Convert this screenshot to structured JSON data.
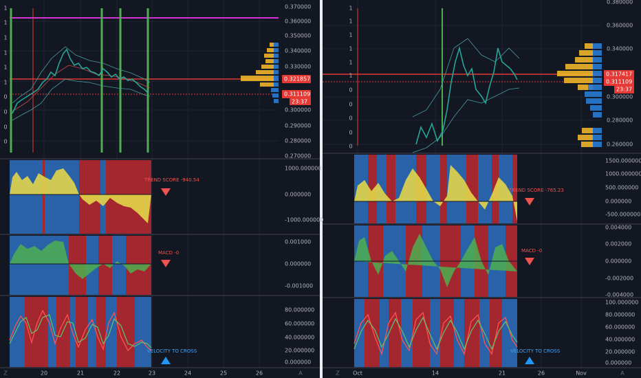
{
  "left_pane": {
    "side_labels": [
      "1",
      "1",
      "1",
      "1",
      "1",
      "1",
      "0",
      "0",
      "0",
      "0"
    ],
    "price_axis": [
      "0.370000",
      "0.360000",
      "0.350000",
      "0.340000",
      "0.330000",
      "0.300000",
      "0.290000",
      "0.280000",
      "0.270000"
    ],
    "price_tags": {
      "last": "0.321857",
      "current": "0.311109",
      "countdown": "23:37"
    },
    "trend_panel": {
      "label": "TREND SCORE -940.54",
      "axis": [
        "1000.000000",
        "0.000000",
        "-1000.000000"
      ]
    },
    "macd_panel": {
      "label": "MACD -0",
      "axis": [
        "0.001000",
        "0.000000",
        "-0.001000"
      ]
    },
    "velocity_panel": {
      "label": "VELOCITY TO CROSS",
      "axis": [
        "80.000000",
        "60.000000",
        "40.000000",
        "20.000000",
        "0.000000"
      ]
    },
    "time_axis": [
      "20",
      "21",
      "22",
      "23",
      "24",
      "25",
      "26"
    ],
    "corner_icons": [
      "Z",
      "A"
    ]
  },
  "right_pane": {
    "side_labels": [
      "1",
      "1",
      "1",
      "1",
      "1",
      "1",
      "0",
      "0",
      "0",
      "0",
      "0"
    ],
    "price_axis": [
      "0.380000",
      "0.360000",
      "0.340000",
      "0.300000",
      "0.280000",
      "0.260000"
    ],
    "price_tags": {
      "last": "0.317417",
      "current": "0.311109",
      "countdown": "23:37"
    },
    "trend_panel": {
      "label": "TREND SCORE -765.23",
      "axis": [
        "1500.000000",
        "1000.000000",
        "500.000000",
        "0.000000",
        "-500.000000"
      ]
    },
    "macd_panel": {
      "label": "MACD -0",
      "axis": [
        "0.004000",
        "0.002000",
        "0.000000",
        "-0.002000",
        "-0.004000"
      ]
    },
    "velocity_panel": {
      "label": "VELOCITY TO CROSS",
      "axis": [
        "100.000000",
        "80.000000",
        "60.000000",
        "40.000000",
        "20.000000",
        "0.000000"
      ]
    },
    "time_axis": [
      "Oct",
      "14",
      "21",
      "26",
      "Nov"
    ],
    "corner_icons": [
      "Z",
      "A"
    ]
  }
}
